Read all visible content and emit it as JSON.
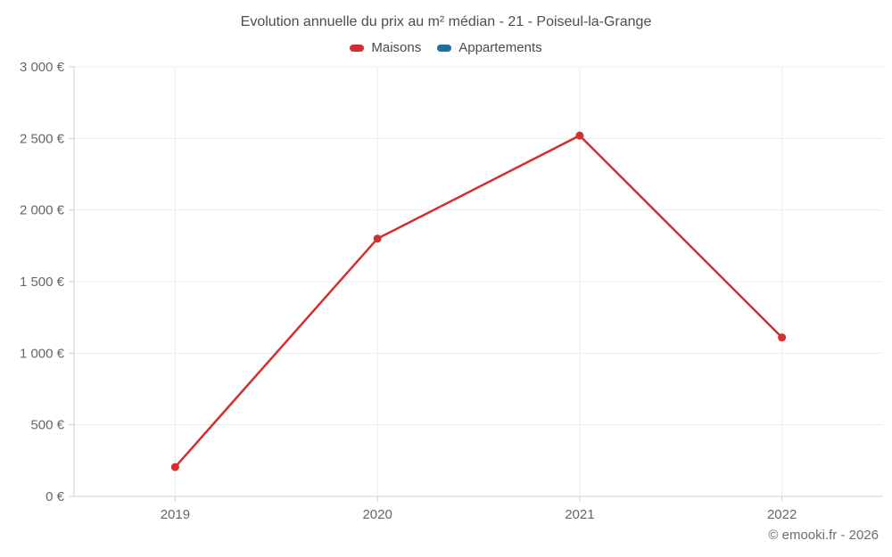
{
  "chart": {
    "title": "Evolution annuelle du prix au m² médian - 21 - Poiseul-la-Grange"
  },
  "chart_data": {
    "type": "line",
    "title": "Evolution annuelle du prix au m² médian - 21 - Poiseul-la-Grange",
    "categories": [
      "2019",
      "2020",
      "2021",
      "2022"
    ],
    "series": [
      {
        "name": "Maisons",
        "color": "#d32f2f",
        "values": [
          205,
          1800,
          2520,
          1110
        ]
      },
      {
        "name": "Appartements",
        "color": "#1c6ea4",
        "values": []
      }
    ],
    "xlabel": "",
    "ylabel": "",
    "ylim": [
      0,
      3000
    ],
    "y_ticks": [
      {
        "value": 0,
        "label": "0 €"
      },
      {
        "value": 500,
        "label": "500 €"
      },
      {
        "value": 1000,
        "label": "1 000 €"
      },
      {
        "value": 1500,
        "label": "1 500 €"
      },
      {
        "value": 2000,
        "label": "2 000 €"
      },
      {
        "value": 2500,
        "label": "2 500 €"
      },
      {
        "value": 3000,
        "label": "3 000 €"
      }
    ],
    "grid": true,
    "legend_position": "top",
    "marker": "circle",
    "colors": {
      "grid": "#ececec",
      "axis": "#cfcfcf",
      "tick_text": "#666666"
    }
  },
  "footer": {
    "copyright": "© emooki.fr - 2026"
  }
}
